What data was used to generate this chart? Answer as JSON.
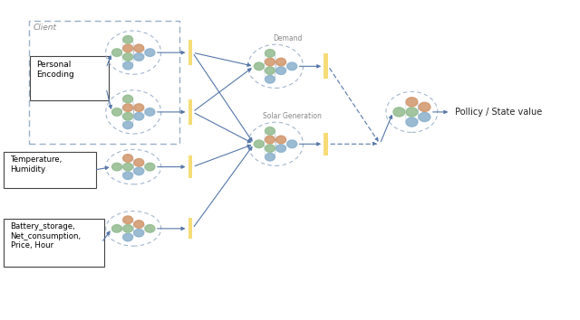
{
  "bg_color": "#ffffff",
  "node_colors": {
    "blue": "#8ab0cc",
    "green": "#92bb8e",
    "orange": "#d0956a"
  },
  "bar_color": "#f5d96b",
  "arrow_color": "#5577aa",
  "ellipse_edge_color": "#99aec8",
  "box_dashed_color": "#99aec8",
  "box_solid_color": "#444444",
  "label_color": "#888888",
  "title": "Client",
  "personal_encoding_label": "Personal\nEncoding",
  "temp_humidity_label": "Temperature,\nHumidity",
  "battery_label": "Battery_storage,\nNet_consumption,\nPrice, Hour",
  "demand_label": "Demand",
  "solar_label": "Solar Generation",
  "policy_label": " Pollicy / State value",
  "figsize": [
    6.4,
    3.54
  ],
  "dpi": 100
}
